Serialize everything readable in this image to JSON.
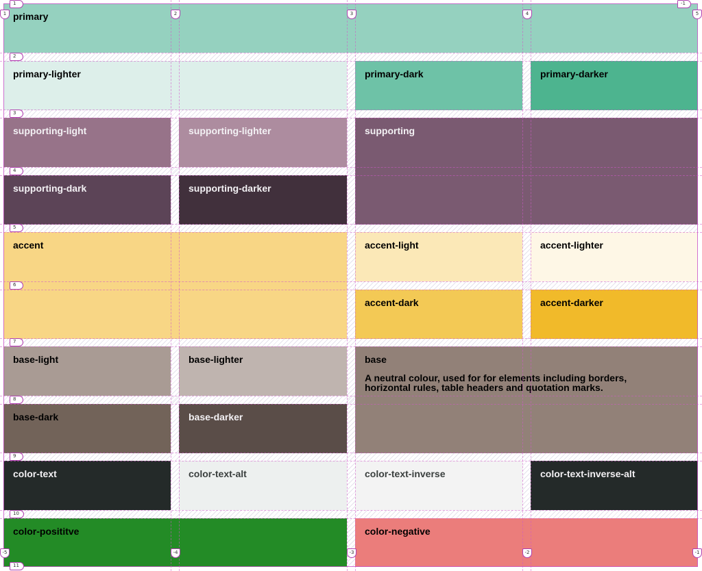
{
  "tiles": {
    "primary": {
      "label": "primary",
      "color": "#95d1bf"
    },
    "primary_lighter": {
      "label": "primary-lighter",
      "color": "#ddefea"
    },
    "primary_dark": {
      "label": "primary-dark",
      "color": "#6ec2a7"
    },
    "primary_darker": {
      "label": "primary-darker",
      "color": "#4db48f"
    },
    "supporting_light": {
      "label": "supporting-light",
      "color": "#977389"
    },
    "supporting_lighter": {
      "label": "supporting-lighter",
      "color": "#ad8c9f"
    },
    "supporting": {
      "label": "supporting",
      "color": "#7a5a71"
    },
    "supporting_dark": {
      "label": "supporting-dark",
      "color": "#5c4457"
    },
    "supporting_darker": {
      "label": "supporting-darker",
      "color": "#41303c"
    },
    "accent": {
      "label": "accent",
      "color": "#f8d685"
    },
    "accent_light": {
      "label": "accent-light",
      "color": "#fbe8b7"
    },
    "accent_lighter": {
      "label": "accent-lighter",
      "color": "#fef7e6"
    },
    "accent_dark": {
      "label": "accent-dark",
      "color": "#f3c955"
    },
    "accent_darker": {
      "label": "accent-darker",
      "color": "#f1ba2a"
    },
    "base_light": {
      "label": "base-light",
      "color": "#a99b94"
    },
    "base_lighter": {
      "label": "base-lighter",
      "color": "#bfb4af"
    },
    "base": {
      "label": "base",
      "description": "A neutral colour, used for for elements including borders, horizontal rules, table headers and quotation marks.",
      "color": "#928178"
    },
    "base_dark": {
      "label": "base-dark",
      "color": "#726359"
    },
    "base_darker": {
      "label": "base-darker",
      "color": "#5a4d48"
    },
    "color_text": {
      "label": "color-text",
      "color": "#242a29"
    },
    "color_text_alt": {
      "label": "color-text-alt",
      "color": "#edf0ef"
    },
    "color_text_inverse": {
      "label": "color-text-inverse",
      "color": "#f3f3f3"
    },
    "color_text_inverse_alt": {
      "label": "color-text-inverse-alt",
      "color": "#242a29"
    },
    "color_positive": {
      "label": "color-posititve",
      "color": "#238b26"
    },
    "color_negative": {
      "label": "color-negative",
      "color": "#eb7d7b"
    }
  },
  "grid_overlay": {
    "column_numbers": [
      "1",
      "2",
      "3",
      "4",
      "5"
    ],
    "column_numbers_negative": [
      "-5",
      "-4",
      "-3",
      "-2",
      "-1"
    ],
    "row_numbers": [
      "1",
      "2",
      "3",
      "4",
      "5",
      "6",
      "7",
      "8",
      "9",
      "10",
      "11"
    ],
    "corner_left": "1",
    "corner_right": "-1",
    "line_color": "#d05ac8"
  }
}
